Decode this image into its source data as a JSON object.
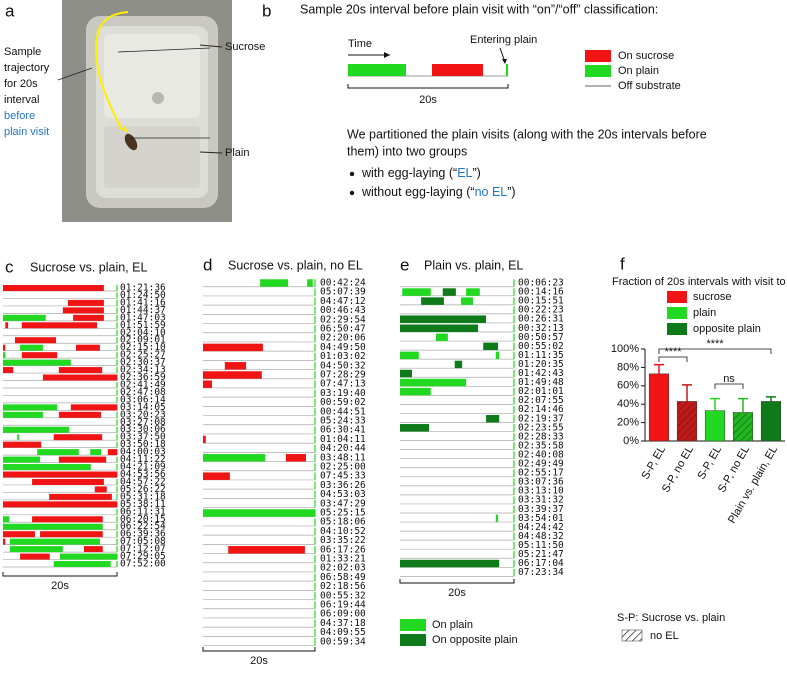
{
  "panel_labels": [
    "a",
    "b",
    "c",
    "d",
    "e",
    "f"
  ],
  "panel_a": {
    "trajectory_text": [
      "Sample",
      "trajectory",
      "for 20s",
      "interval"
    ],
    "trajectory_blue": [
      "before",
      "plain visit"
    ],
    "sucrose_label": "Sucrose",
    "plain_label": "Plain"
  },
  "panel_b": {
    "title": "Sample 20s interval before plain visit with “on”/“off” classification:",
    "time_label": "Time",
    "entering_label": "Entering plain",
    "scale_label": "20s",
    "legend": [
      {
        "name": "On sucrose",
        "color": "#f01414"
      },
      {
        "name": "On plain",
        "color": "#22d922"
      },
      {
        "name": "Off substrate",
        "color": "#999999"
      }
    ],
    "paragraph": [
      "We partitioned the plain visits (along with the 20s intervals before",
      "them) into two groups"
    ],
    "bullets": [
      [
        "with egg-laying (“",
        "EL",
        "”)"
      ],
      [
        "without egg-laying (“",
        "no EL",
        "”)"
      ]
    ]
  },
  "raster_colors": {
    "sucrose": "#f01414",
    "plain": "#22d922",
    "opposite": "#0f7a1a"
  },
  "rasters": [
    {
      "title": "Sucrose vs. plain, EL",
      "xlim": [
        0,
        20
      ],
      "scale_label": "20s",
      "rows": [
        {
          "time": "01:21:36",
          "sucrose": [
            [
              0,
              17.7
            ]
          ]
        },
        {
          "time": "01:24:50"
        },
        {
          "time": "01:41:16",
          "sucrose": [
            [
              11.4,
              17.7
            ]
          ]
        },
        {
          "time": "01:44:37",
          "sucrose": [
            [
              10.5,
              17.7
            ]
          ]
        },
        {
          "time": "01:47:03",
          "plain": [
            [
              0,
              7.5
            ]
          ],
          "sucrose": [
            [
              12.3,
              17.7
            ]
          ]
        },
        {
          "time": "01:51:59",
          "sucrose": [
            [
              0.4,
              0.9
            ],
            [
              3.3,
              16.5
            ]
          ]
        },
        {
          "time": "02:04:10"
        },
        {
          "time": "02:09:01",
          "sucrose": [
            [
              2.1,
              9.3
            ]
          ]
        },
        {
          "time": "02:15:10",
          "sucrose": [
            [
              0,
              0.4
            ],
            [
              12.8,
              17.0
            ]
          ],
          "plain": [
            [
              3.0,
              7.0
            ]
          ]
        },
        {
          "time": "02:25:27",
          "plain": [
            [
              0,
              0.4
            ]
          ],
          "sucrose": [
            [
              3.3,
              9.5
            ]
          ]
        },
        {
          "time": "02:30:37",
          "plain": [
            [
              0,
              11.9
            ]
          ]
        },
        {
          "time": "02:34:13",
          "sucrose": [
            [
              0,
              1.8
            ],
            [
              9.8,
              17.4
            ]
          ]
        },
        {
          "time": "02:36:59",
          "sucrose": [
            [
              7.0,
              20
            ]
          ]
        },
        {
          "time": "02:41:49"
        },
        {
          "time": "02:47:08"
        },
        {
          "time": "03:06:14"
        },
        {
          "time": "03:14:05",
          "plain": [
            [
              0,
              9.5
            ]
          ],
          "sucrose": [
            [
              11.9,
              20
            ]
          ]
        },
        {
          "time": "03:20:23",
          "plain": [
            [
              0,
              7.0
            ]
          ],
          "sucrose": [
            [
              9.8,
              17.2
            ]
          ]
        },
        {
          "time": "03:27:08"
        },
        {
          "time": "03:30:06",
          "plain": [
            [
              0,
              11.6
            ]
          ]
        },
        {
          "time": "03:37:50",
          "plain": [
            [
              2.5,
              2.8
            ]
          ],
          "sucrose": [
            [
              8.9,
              17.4
            ]
          ]
        },
        {
          "time": "03:50:18",
          "sucrose": [
            [
              0,
              6.7
            ]
          ]
        },
        {
          "time": "04:00:03",
          "plain": [
            [
              6.0,
              13.3
            ],
            [
              15.3,
              17.2
            ]
          ],
          "sucrose": [
            [
              18.4,
              20
            ]
          ]
        },
        {
          "time": "04:11:22",
          "plain": [
            [
              0,
              6.5
            ]
          ],
          "sucrose": [
            [
              9.8,
              18.1
            ]
          ]
        },
        {
          "time": "04:21:09",
          "plain": [
            [
              0,
              15.4
            ]
          ]
        },
        {
          "time": "04:53:56",
          "sucrose": [
            [
              0,
              20
            ]
          ]
        },
        {
          "time": "04:57:22",
          "sucrose": [
            [
              5.1,
              17.7
            ]
          ]
        },
        {
          "time": "05:26:22",
          "sucrose": [
            [
              16.1,
              18.2
            ]
          ]
        },
        {
          "time": "05:31:18",
          "sucrose": [
            [
              8.1,
              19.1
            ]
          ]
        },
        {
          "time": "05:38:11",
          "sucrose": [
            [
              0,
              20
            ]
          ]
        },
        {
          "time": "06:11:31"
        },
        {
          "time": "06:20:15",
          "plain": [
            [
              0,
              1.1
            ]
          ],
          "sucrose": [
            [
              5.1,
              17.5
            ]
          ]
        },
        {
          "time": "06:22:54",
          "plain": [
            [
              0,
              17.5
            ]
          ]
        },
        {
          "time": "06:39:36",
          "sucrose": [
            [
              0,
              5.6
            ],
            [
              6.5,
              17.5
            ]
          ]
        },
        {
          "time": "07:05:08",
          "sucrose": [
            [
              0,
              0.4
            ]
          ],
          "plain": [
            [
              1.2,
              17.0
            ]
          ]
        },
        {
          "time": "07:12:07",
          "plain": [
            [
              1.2,
              10.5
            ]
          ],
          "sucrose": [
            [
              14.2,
              17.5
            ]
          ]
        },
        {
          "time": "07:29:05",
          "sucrose": [
            [
              3.0,
              8.2
            ]
          ],
          "plain": [
            [
              10.0,
              20
            ]
          ]
        },
        {
          "time": "07:52:00",
          "plain": [
            [
              8.9,
              18.9
            ]
          ]
        }
      ]
    },
    {
      "title": "Sucrose vs. plain, no EL",
      "xlim": [
        0,
        20
      ],
      "scale_label": "20s",
      "rows": [
        {
          "time": "00:42:24",
          "plain": [
            [
              10.2,
              15.2
            ],
            [
              18.6,
              19.6
            ]
          ]
        },
        {
          "time": "05:07:39"
        },
        {
          "time": "04:47:12"
        },
        {
          "time": "00:46:43"
        },
        {
          "time": "02:29:54"
        },
        {
          "time": "06:50:47"
        },
        {
          "time": "02:20:06"
        },
        {
          "time": "04:49:50",
          "sucrose": [
            [
              0,
              10.7
            ]
          ]
        },
        {
          "time": "01:03:02"
        },
        {
          "time": "04:50:32",
          "sucrose": [
            [
              3.9,
              7.7
            ]
          ]
        },
        {
          "time": "07:28:29",
          "sucrose": [
            [
              0,
              10.5
            ]
          ]
        },
        {
          "time": "07:47:13",
          "sucrose": [
            [
              0,
              1.6
            ]
          ]
        },
        {
          "time": "03:19:40"
        },
        {
          "time": "00:59:02"
        },
        {
          "time": "00:44:51"
        },
        {
          "time": "05:24:33"
        },
        {
          "time": "06:30:41"
        },
        {
          "time": "01:04:11",
          "sucrose": [
            [
              0,
              0.5
            ]
          ]
        },
        {
          "time": "04:20:44"
        },
        {
          "time": "03:48:11",
          "plain": [
            [
              0,
              11.1
            ]
          ],
          "sucrose": [
            [
              14.8,
              18.4
            ]
          ]
        },
        {
          "time": "02:25:00"
        },
        {
          "time": "07:45:33",
          "sucrose": [
            [
              0,
              4.8
            ]
          ]
        },
        {
          "time": "03:36:26"
        },
        {
          "time": "04:53:03"
        },
        {
          "time": "03:47:29"
        },
        {
          "time": "05:25:15",
          "plain": [
            [
              0,
              20
            ]
          ]
        },
        {
          "time": "05:18:06"
        },
        {
          "time": "04:10:52"
        },
        {
          "time": "03:35:22"
        },
        {
          "time": "06:17:26",
          "sucrose": [
            [
              4.5,
              18.2
            ]
          ]
        },
        {
          "time": "01:33:21"
        },
        {
          "time": "02:02:03"
        },
        {
          "time": "06:58:49"
        },
        {
          "time": "02:18:56"
        },
        {
          "time": "00:55:32"
        },
        {
          "time": "06:19:44"
        },
        {
          "time": "06:09:00"
        },
        {
          "time": "04:37:18"
        },
        {
          "time": "04:09:55"
        },
        {
          "time": "00:59:34"
        }
      ]
    },
    {
      "title": "Plain vs. plain, EL",
      "xlim": [
        0,
        20
      ],
      "scale_label": "20s",
      "rows": [
        {
          "time": "00:06:23"
        },
        {
          "time": "00:14:16",
          "plain": [
            [
              0.4,
              5.4
            ],
            [
              11.6,
              14.0
            ]
          ],
          "opposite": [
            [
              7.5,
              9.8
            ]
          ]
        },
        {
          "time": "00:15:51",
          "opposite": [
            [
              3.7,
              7.7
            ]
          ],
          "plain": [
            [
              10.7,
              12.8
            ]
          ]
        },
        {
          "time": "00:22:23"
        },
        {
          "time": "00:26:31",
          "opposite": [
            [
              0,
              15.1
            ]
          ]
        },
        {
          "time": "00:32:13",
          "opposite": [
            [
              0,
              13.7
            ]
          ]
        },
        {
          "time": "00:50:57",
          "plain": [
            [
              6.3,
              8.4
            ]
          ]
        },
        {
          "time": "00:55:02",
          "opposite": [
            [
              14.6,
              17.2
            ]
          ]
        },
        {
          "time": "01:11:35",
          "plain": [
            [
              0,
              3.3
            ],
            [
              16.8,
              17.4
            ]
          ]
        },
        {
          "time": "01:20:35",
          "opposite": [
            [
              9.6,
              10.9
            ]
          ]
        },
        {
          "time": "01:42:43",
          "opposite": [
            [
              0,
              2.1
            ]
          ]
        },
        {
          "time": "01:49:48",
          "plain": [
            [
              0,
              11.6
            ]
          ]
        },
        {
          "time": "02:01:01",
          "plain": [
            [
              0,
              5.4
            ]
          ]
        },
        {
          "time": "02:07:55"
        },
        {
          "time": "02:14:46"
        },
        {
          "time": "02:19:37",
          "opposite": [
            [
              15.1,
              17.4
            ]
          ]
        },
        {
          "time": "02:23:55",
          "opposite": [
            [
              0,
              5.1
            ]
          ]
        },
        {
          "time": "02:28:33"
        },
        {
          "time": "02:35:58"
        },
        {
          "time": "02:40:08"
        },
        {
          "time": "02:49:49"
        },
        {
          "time": "02:55:17"
        },
        {
          "time": "03:07:36"
        },
        {
          "time": "03:13:10"
        },
        {
          "time": "03:31:32"
        },
        {
          "time": "03:39:37"
        },
        {
          "time": "03:54:01",
          "plain": [
            [
              16.8,
              17.2
            ]
          ]
        },
        {
          "time": "04:24:42"
        },
        {
          "time": "04:48:32"
        },
        {
          "time": "05:11:50"
        },
        {
          "time": "05:21:47"
        },
        {
          "time": "06:17:04",
          "opposite": [
            [
              0,
              17.4
            ]
          ]
        },
        {
          "time": "07:23:34"
        }
      ],
      "legend": [
        {
          "name": "On plain",
          "key": "plain"
        },
        {
          "name": "On opposite plain",
          "key": "opposite"
        }
      ]
    }
  ],
  "chart_data": {
    "type": "bar",
    "title": "Fraction of 20s intervals with visit to",
    "categories": [
      "S-P, EL",
      "S-P, no EL",
      "S-P, EL",
      "S-P, no EL",
      "Plain vs. plain, EL"
    ],
    "values": [
      73,
      43,
      33,
      31,
      43
    ],
    "errors": [
      10,
      18,
      13,
      15,
      5
    ],
    "colors": [
      "#f01414",
      "#c41818",
      "#22d922",
      "#1fb91f",
      "#0f7a1a"
    ],
    "hatched": [
      false,
      true,
      false,
      true,
      false
    ],
    "legend": [
      {
        "name": "sucrose",
        "color": "#f01414"
      },
      {
        "name": "plain",
        "color": "#22d922"
      },
      {
        "name": "opposite plain",
        "color": "#0f7a1a"
      }
    ],
    "ylim": [
      0,
      100
    ],
    "yticks": [
      {
        "value": 0,
        "label": "0%"
      },
      {
        "value": 20,
        "label": "20%"
      },
      {
        "value": 40,
        "label": "40%"
      },
      {
        "value": 60,
        "label": "60%"
      },
      {
        "value": 80,
        "label": "80%"
      },
      {
        "value": 100,
        "label": "100%"
      }
    ],
    "annotations": [
      "****",
      "****",
      "ns"
    ],
    "hatch_note": "S-P: Sucrose vs. plain",
    "hatch_label": "no EL"
  }
}
